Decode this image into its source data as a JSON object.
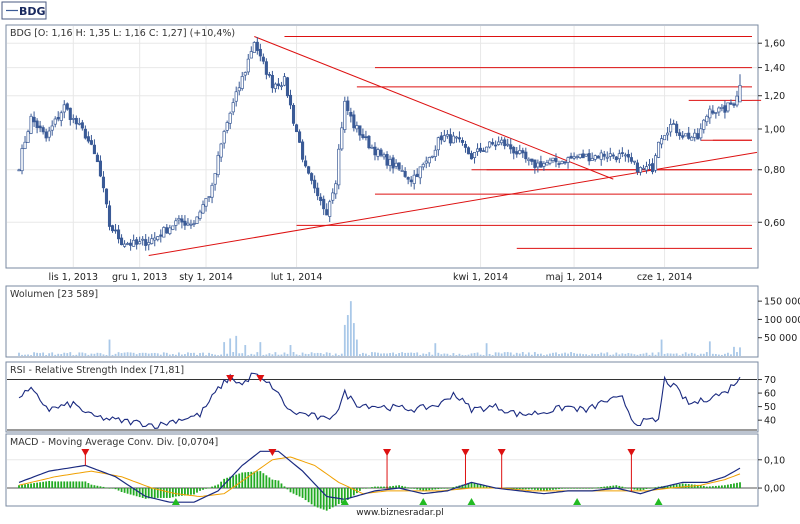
{
  "toolbar": {
    "symbol_tab": "BDG"
  },
  "footer": {
    "site": "www.biznesradar.pl"
  },
  "colors": {
    "candle": "#3a5a96",
    "line_red": "#dd1111",
    "volume_bar": "#a9c8e8",
    "rsi_line": "#1a2a80",
    "macd_line": "#1a2a80",
    "signal_line": "#f0a000",
    "hist_pos": "#22aa22",
    "hist_neg": "#22aa22",
    "marker_buy": "#22bb22",
    "marker_sell": "#dd1111",
    "frame": "#7a8aa0",
    "grid": "#e8e8e8"
  },
  "chart_data": [
    {
      "type": "candlestick",
      "title": "BDG [O: 1,16  H: 1,35  L: 1,16  C: 1,27] (+10,4%)",
      "x_tick_labels": [
        "lis 1, 2013",
        "gru 1, 2013",
        "sty 1, 2014",
        "lut 1, 2014",
        "kwi 1, 2014",
        "maj 1, 2014",
        "cze 1, 2014"
      ],
      "x_tick_index": [
        18,
        40,
        62,
        92,
        153,
        184,
        214
      ],
      "y_scale": "log",
      "ylim": [
        0.48,
        1.72
      ],
      "y_ticks": [
        0.6,
        0.8,
        1.0,
        1.2,
        1.4,
        1.6
      ],
      "y_tick_labels": [
        "0,60",
        "0,80",
        "1,00",
        "1,20",
        "1,40",
        "1,60"
      ],
      "n": 240,
      "close_keypoints": [
        [
          0,
          0.82
        ],
        [
          4,
          1.06
        ],
        [
          9,
          0.95
        ],
        [
          15,
          1.13
        ],
        [
          18,
          1.05
        ],
        [
          22,
          0.97
        ],
        [
          26,
          0.83
        ],
        [
          30,
          0.59
        ],
        [
          34,
          0.54
        ],
        [
          39,
          0.53
        ],
        [
          45,
          0.55
        ],
        [
          52,
          0.6
        ],
        [
          58,
          0.6
        ],
        [
          64,
          0.72
        ],
        [
          68,
          0.98
        ],
        [
          72,
          1.2
        ],
        [
          75,
          1.38
        ],
        [
          78,
          1.62
        ],
        [
          80,
          1.47
        ],
        [
          84,
          1.28
        ],
        [
          88,
          1.3
        ],
        [
          91,
          1.05
        ],
        [
          95,
          0.8
        ],
        [
          99,
          0.68
        ],
        [
          102,
          0.64
        ],
        [
          105,
          0.76
        ],
        [
          108,
          1.15
        ],
        [
          111,
          1.02
        ],
        [
          116,
          0.92
        ],
        [
          120,
          0.86
        ],
        [
          125,
          0.81
        ],
        [
          130,
          0.76
        ],
        [
          135,
          0.83
        ],
        [
          140,
          0.96
        ],
        [
          145,
          0.94
        ],
        [
          150,
          0.86
        ],
        [
          155,
          0.91
        ],
        [
          160,
          0.93
        ],
        [
          165,
          0.88
        ],
        [
          170,
          0.82
        ],
        [
          175,
          0.83
        ],
        [
          180,
          0.84
        ],
        [
          185,
          0.86
        ],
        [
          190,
          0.86
        ],
        [
          194,
          0.87
        ],
        [
          200,
          0.86
        ],
        [
          206,
          0.8
        ],
        [
          210,
          0.81
        ],
        [
          212,
          0.95
        ],
        [
          216,
          1.02
        ],
        [
          220,
          0.97
        ],
        [
          225,
          0.95
        ],
        [
          229,
          1.12
        ],
        [
          233,
          1.1
        ],
        [
          237,
          1.16
        ],
        [
          239,
          1.27
        ]
      ],
      "last_candle": {
        "open": 1.16,
        "high": 1.35,
        "low": 1.16,
        "close": 1.27,
        "change": "+10,4%"
      },
      "support_resistance_lines": [
        1.66,
        1.4,
        1.26,
        1.17,
        0.94,
        0.8,
        0.7,
        0.59,
        0.52
      ],
      "trend_lines": [
        {
          "from": [
            78,
            1.66
          ],
          "to": [
            197,
            0.76
          ]
        },
        {
          "from": [
            43,
            0.5
          ],
          "to": [
            248,
            0.88
          ]
        }
      ]
    },
    {
      "type": "bar",
      "title": "Wolumen [23 589]",
      "y_ticks": [
        50000,
        100000,
        150000
      ],
      "y_tick_labels": [
        "50 000",
        "100 000",
        "150 000"
      ],
      "ylim": [
        0,
        175000
      ],
      "spikes": [
        [
          0,
          9000
        ],
        [
          30,
          45000
        ],
        [
          68,
          38000
        ],
        [
          70,
          48000
        ],
        [
          72,
          55000
        ],
        [
          75,
          30000
        ],
        [
          80,
          38000
        ],
        [
          90,
          30000
        ],
        [
          108,
          85000
        ],
        [
          109,
          112000
        ],
        [
          110,
          150000
        ],
        [
          111,
          90000
        ],
        [
          112,
          45000
        ],
        [
          138,
          35000
        ],
        [
          155,
          35000
        ],
        [
          213,
          45000
        ],
        [
          229,
          40000
        ],
        [
          237,
          25000
        ],
        [
          239,
          23589
        ]
      ]
    },
    {
      "type": "line",
      "title": "RSI - Relative Strength Index [71,81]",
      "y_ticks": [
        40,
        50,
        60,
        70
      ],
      "y_tick_labels": [
        "40",
        "50",
        "60",
        "70"
      ],
      "ylim": [
        32,
        80
      ],
      "keypoints": [
        [
          0,
          58
        ],
        [
          4,
          62
        ],
        [
          10,
          48
        ],
        [
          18,
          52
        ],
        [
          24,
          43
        ],
        [
          32,
          40
        ],
        [
          40,
          38
        ],
        [
          46,
          36
        ],
        [
          52,
          40
        ],
        [
          60,
          44
        ],
        [
          66,
          63
        ],
        [
          70,
          72
        ],
        [
          74,
          66
        ],
        [
          78,
          75
        ],
        [
          80,
          70
        ],
        [
          84,
          65
        ],
        [
          90,
          46
        ],
        [
          96,
          44
        ],
        [
          102,
          40
        ],
        [
          106,
          49
        ],
        [
          108,
          60
        ],
        [
          112,
          52
        ],
        [
          120,
          50
        ],
        [
          132,
          48
        ],
        [
          140,
          52
        ],
        [
          144,
          60
        ],
        [
          150,
          48
        ],
        [
          158,
          50
        ],
        [
          166,
          44
        ],
        [
          174,
          46
        ],
        [
          182,
          50
        ],
        [
          188,
          47
        ],
        [
          194,
          54
        ],
        [
          200,
          56
        ],
        [
          204,
          38
        ],
        [
          212,
          40
        ],
        [
          214,
          70
        ],
        [
          218,
          63
        ],
        [
          222,
          52
        ],
        [
          226,
          54
        ],
        [
          230,
          58
        ],
        [
          234,
          60
        ],
        [
          239,
          71.81
        ]
      ],
      "sell_markers": [
        70,
        80
      ],
      "threshold_lines": [
        70,
        30
      ]
    },
    {
      "type": "line",
      "title": "MACD - Moving Average Conv. Div. [0,0704]",
      "y_ticks": [
        0,
        0.1
      ],
      "y_tick_labels": [
        "0,00",
        "0,10"
      ],
      "ylim": [
        -0.06,
        0.17
      ],
      "macd_keypoints": [
        [
          0,
          0.02
        ],
        [
          10,
          0.06
        ],
        [
          22,
          0.08
        ],
        [
          32,
          0.04
        ],
        [
          42,
          -0.03
        ],
        [
          50,
          -0.05
        ],
        [
          58,
          -0.05
        ],
        [
          66,
          -0.01
        ],
        [
          74,
          0.08
        ],
        [
          80,
          0.13
        ],
        [
          86,
          0.13
        ],
        [
          94,
          0.06
        ],
        [
          102,
          -0.03
        ],
        [
          108,
          -0.04
        ],
        [
          118,
          -0.01
        ],
        [
          126,
          0.0
        ],
        [
          134,
          -0.02
        ],
        [
          142,
          -0.01
        ],
        [
          150,
          0.02
        ],
        [
          158,
          0.0
        ],
        [
          166,
          -0.01
        ],
        [
          174,
          -0.02
        ],
        [
          182,
          -0.01
        ],
        [
          190,
          -0.01
        ],
        [
          198,
          0.0
        ],
        [
          206,
          -0.02
        ],
        [
          212,
          0.0
        ],
        [
          220,
          0.02
        ],
        [
          228,
          0.02
        ],
        [
          234,
          0.04
        ],
        [
          239,
          0.0704
        ]
      ],
      "signal_keypoints": [
        [
          0,
          0.01
        ],
        [
          12,
          0.04
        ],
        [
          24,
          0.06
        ],
        [
          34,
          0.04
        ],
        [
          44,
          0.0
        ],
        [
          52,
          -0.02
        ],
        [
          60,
          -0.03
        ],
        [
          68,
          -0.02
        ],
        [
          76,
          0.04
        ],
        [
          84,
          0.1
        ],
        [
          90,
          0.11
        ],
        [
          98,
          0.08
        ],
        [
          106,
          0.02
        ],
        [
          114,
          -0.02
        ],
        [
          122,
          -0.01
        ],
        [
          130,
          -0.01
        ],
        [
          140,
          -0.01
        ],
        [
          150,
          0.0
        ],
        [
          160,
          0.0
        ],
        [
          170,
          -0.01
        ],
        [
          180,
          -0.01
        ],
        [
          190,
          -0.01
        ],
        [
          200,
          -0.01
        ],
        [
          208,
          -0.01
        ],
        [
          216,
          0.0
        ],
        [
          226,
          0.01
        ],
        [
          234,
          0.03
        ],
        [
          239,
          0.05
        ]
      ],
      "sell_markers": [
        22,
        84,
        122,
        148,
        160,
        203
      ],
      "buy_markers": [
        52,
        108,
        134,
        150,
        185,
        212
      ]
    }
  ]
}
